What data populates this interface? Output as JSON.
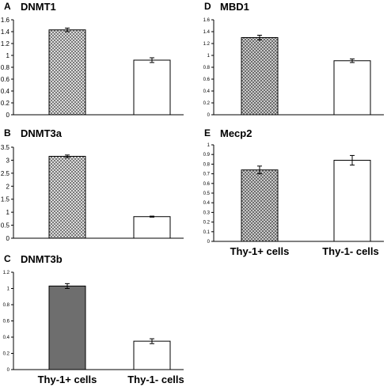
{
  "chart_data": [
    {
      "panel": "A",
      "title": "DNMT1",
      "type": "bar",
      "categories": [
        "Thy-1+ cells",
        "Thy-1- cells"
      ],
      "values": [
        1.43,
        0.92
      ],
      "errors": [
        0.03,
        0.04
      ],
      "ylim": [
        0,
        1.6
      ],
      "yticks": [
        "0",
        "0.2",
        "0.4",
        "0.6",
        "0.8",
        "1",
        "1.2",
        "1.4",
        "1.6"
      ],
      "bar_fills": [
        "checker",
        "#ffffff"
      ],
      "show_category_labels": false
    },
    {
      "panel": "B",
      "title": "DNMT3a",
      "type": "bar",
      "categories": [
        "Thy-1+ cells",
        "Thy-1- cells"
      ],
      "values": [
        3.15,
        0.83
      ],
      "errors": [
        0.05,
        0.02
      ],
      "ylim": [
        0,
        3.5
      ],
      "yticks": [
        "0",
        "0.5",
        "1",
        "1.5",
        "2",
        "2.5",
        "3",
        "3.5"
      ],
      "bar_fills": [
        "checker",
        "#ffffff"
      ],
      "show_category_labels": false
    },
    {
      "panel": "C",
      "title": "DNMT3b",
      "type": "bar",
      "categories": [
        "Thy-1+ cells",
        "Thy-1- cells"
      ],
      "values": [
        1.03,
        0.35
      ],
      "errors": [
        0.03,
        0.03
      ],
      "ylim": [
        0,
        1.2
      ],
      "yticks": [
        "0",
        "0.2",
        "0.4",
        "0.6",
        "0.8",
        "1",
        "1.2"
      ],
      "bar_fills": [
        "#6e6e6e",
        "#ffffff"
      ],
      "show_category_labels": true
    },
    {
      "panel": "D",
      "title": "MBD1",
      "type": "bar",
      "categories": [
        "Thy-1+ cells",
        "Thy-1- cells"
      ],
      "values": [
        1.3,
        0.91
      ],
      "errors": [
        0.04,
        0.03
      ],
      "ylim": [
        0,
        1.6
      ],
      "yticks": [
        "0",
        "0.2",
        "0.4",
        "0.6",
        "0.8",
        "1",
        "1.2",
        "1.4",
        "1.6"
      ],
      "bar_fills": [
        "crosshatch",
        "#ffffff"
      ],
      "show_category_labels": false
    },
    {
      "panel": "E",
      "title": "Mecp2",
      "type": "bar",
      "categories": [
        "Thy-1+ cells",
        "Thy-1- cells"
      ],
      "values": [
        0.74,
        0.84
      ],
      "errors": [
        0.04,
        0.05
      ],
      "ylim": [
        0,
        1
      ],
      "yticks": [
        "0",
        "0.1",
        "0.2",
        "0.3",
        "0.4",
        "0.5",
        "0.6",
        "0.7",
        "0.8",
        "0.9",
        "1"
      ],
      "bar_fills": [
        "crosshatch",
        "#ffffff"
      ],
      "show_category_labels": true
    }
  ]
}
